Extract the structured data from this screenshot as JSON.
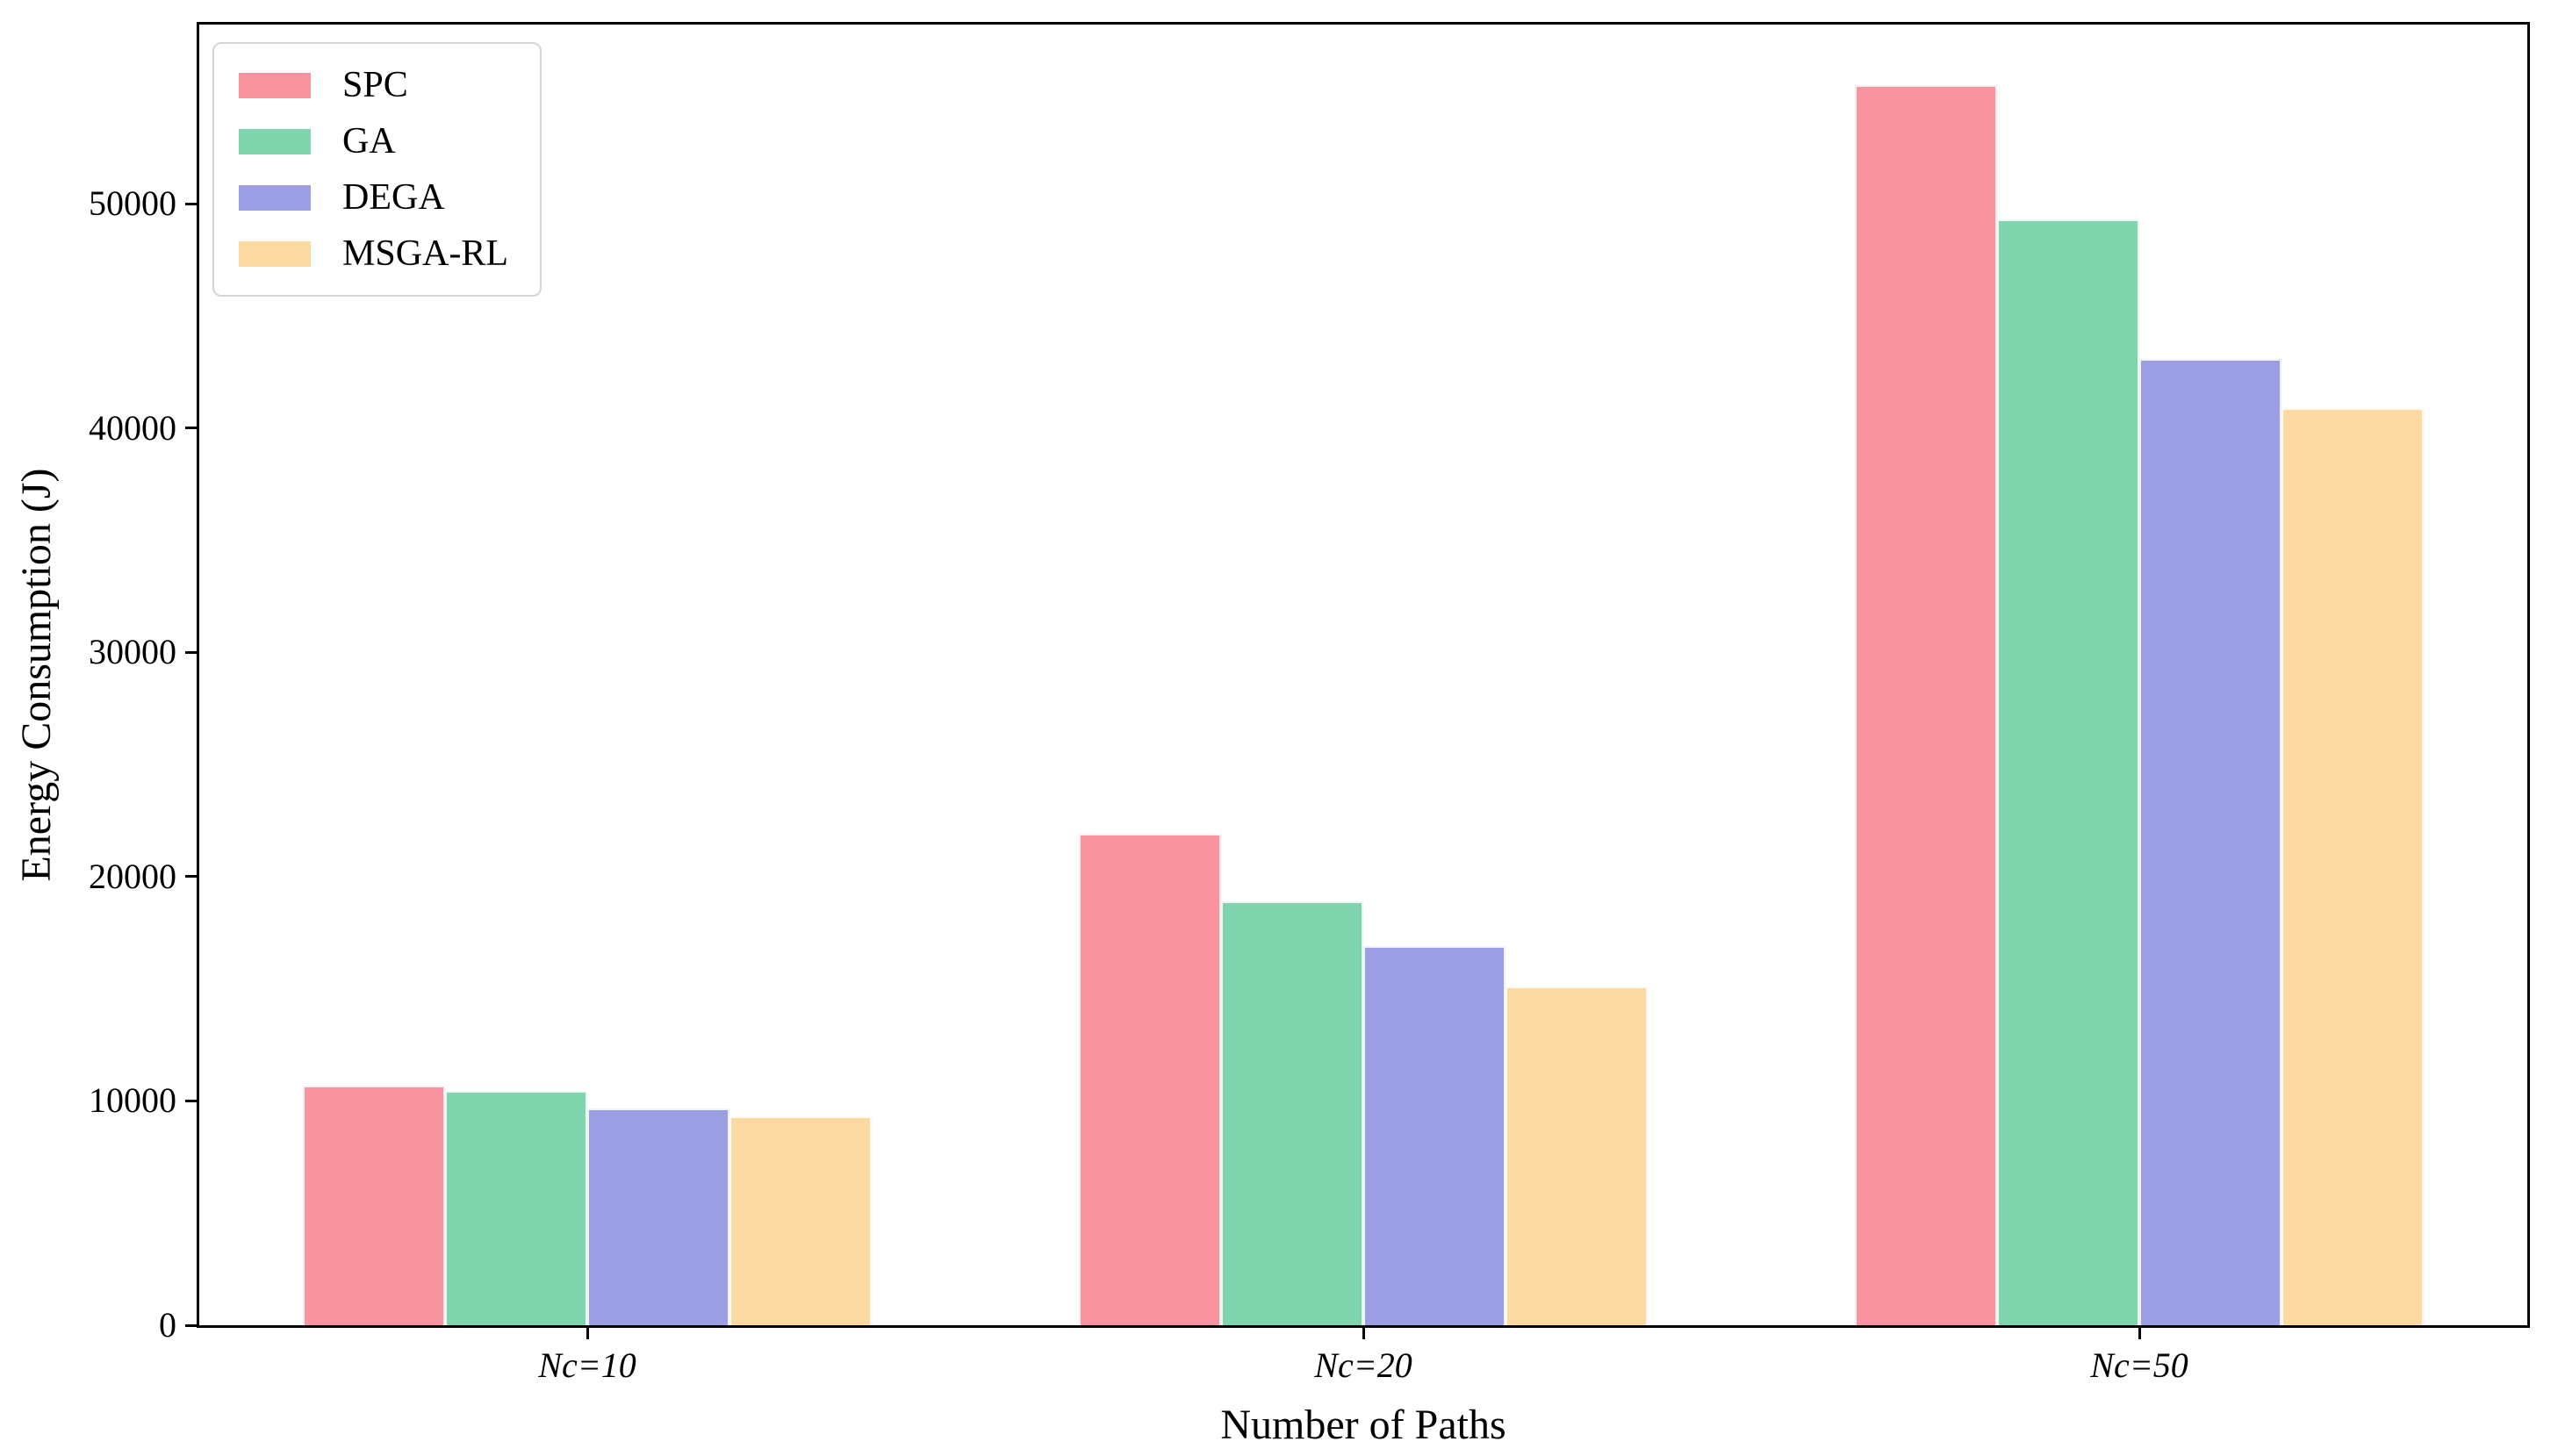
{
  "figure": {
    "background": "#ffffff",
    "text_color": "#000000",
    "axis_color": "#000000"
  },
  "chart_data": {
    "type": "bar",
    "title": "",
    "xlabel": "Number of Paths",
    "ylabel": "Energy Consumption (J)",
    "categories": [
      "Nc=10",
      "Nc=20",
      "Nc=50"
    ],
    "series": [
      {
        "name": "SPC",
        "color": "#F9939F",
        "values": [
          10700,
          21900,
          55300
        ]
      },
      {
        "name": "GA",
        "color": "#7FD5AE",
        "values": [
          10450,
          18900,
          49300
        ]
      },
      {
        "name": "DEGA",
        "color": "#9C9EE3",
        "values": [
          9650,
          16900,
          43100
        ]
      },
      {
        "name": "MSGA-RL",
        "color": "#FCD9A1",
        "values": [
          9300,
          15100,
          40900
        ]
      }
    ],
    "ylim": [
      0,
      58000
    ],
    "yticks": [
      0,
      10000,
      20000,
      30000,
      40000,
      50000
    ],
    "grid": false,
    "legend_position": "upper left",
    "bar_edge_color": "#ffffff",
    "x_tick_style": "italic"
  }
}
